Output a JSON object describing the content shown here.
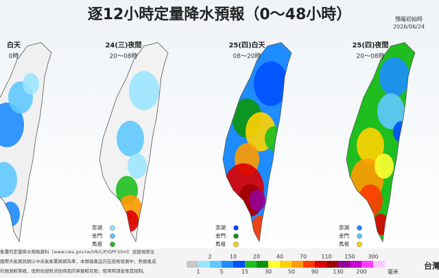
{
  "header": {
    "title": "逐12小時定量降水預報（0～48小時）",
    "init_label": "預報初始時",
    "init_date": "2026/06/24"
  },
  "panels": [
    {
      "title": "白天",
      "time": "0時"
    },
    {
      "title": "24(三)夜間",
      "time": "20～08時"
    },
    {
      "title": "25(四)白天",
      "time": "08～20時"
    },
    {
      "title": "25(四)夜間",
      "time": "20～08時"
    }
  ],
  "islands": [
    "澎湖",
    "金門",
    "馬祖"
  ],
  "legend": {
    "top": [
      "2",
      "10",
      "20",
      "40",
      "70",
      "110",
      "150",
      "300"
    ],
    "bottom": [
      "1",
      "5",
      "15",
      "30",
      "50",
      "90",
      "130",
      "200"
    ],
    "unit": "毫米",
    "colors": [
      "#c8c8c8",
      "#9be6ff",
      "#5fc8ff",
      "#1e8cff",
      "#0050ff",
      "#1ebe1e",
      "#0a960a",
      "#ffff32",
      "#ffd200",
      "#ff9b00",
      "#ff3c00",
      "#dc0000",
      "#a00000",
      "#960096",
      "#c800d2",
      "#ff3cff",
      "#ffc8ff"
    ]
  },
  "footer": {
    "lines": [
      "象署的定量降水預報資料（www.cwa.gov.tw/V8/C/P/QPF.html）並經視覺化",
      "國際天氣資訊網以中央氣象署資網為準，本預報產品仍在技術發展中，對颱風或",
      "的預測較準確，但對局部對流性降雨的掌握較有限，使用時請留意其限制。"
    ],
    "brand": "台灣"
  }
}
